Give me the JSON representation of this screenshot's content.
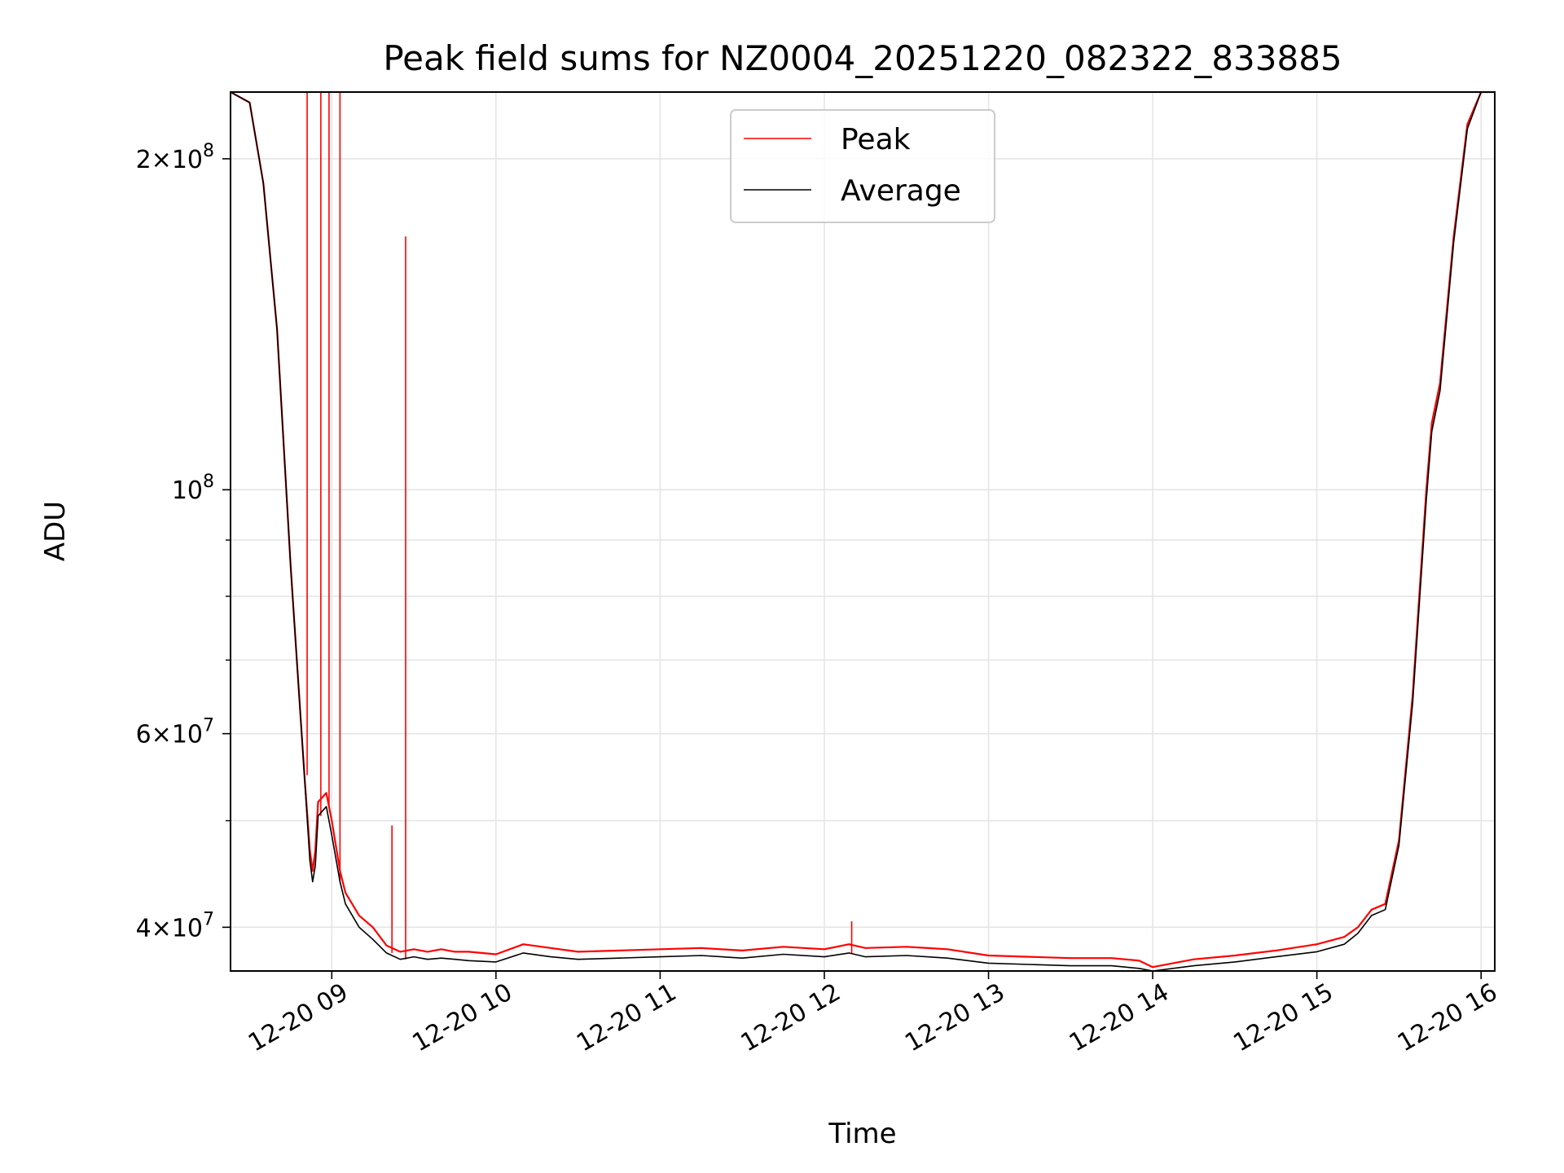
{
  "chart_data": {
    "type": "line",
    "title": "Peak field sums for NZ0004_20251220_082322_833885",
    "xlabel": "Time",
    "ylabel": "ADU",
    "yscale": "log",
    "grid": true,
    "legend_placement": "upper-center",
    "xlim": [
      "2025-12-20 08:23",
      "2025-12-20 16:05"
    ],
    "ylim": [
      36500000,
      230000000
    ],
    "x_ticks": [
      {
        "t": "2025-12-20 09:00",
        "label": "12-20 09"
      },
      {
        "t": "2025-12-20 10:00",
        "label": "12-20 10"
      },
      {
        "t": "2025-12-20 11:00",
        "label": "12-20 11"
      },
      {
        "t": "2025-12-20 12:00",
        "label": "12-20 12"
      },
      {
        "t": "2025-12-20 13:00",
        "label": "12-20 13"
      },
      {
        "t": "2025-12-20 14:00",
        "label": "12-20 14"
      },
      {
        "t": "2025-12-20 15:00",
        "label": "12-20 15"
      },
      {
        "t": "2025-12-20 16:00",
        "label": "12-20 16"
      }
    ],
    "y_major_ticks": [
      {
        "v": 40000000,
        "mant": "4",
        "exp": "7"
      },
      {
        "v": 60000000,
        "mant": "6",
        "exp": "7"
      },
      {
        "v": 100000000,
        "mant": "",
        "exp": "8"
      },
      {
        "v": 200000000,
        "mant": "2",
        "exp": "8"
      }
    ],
    "y_minor_ticks": [
      50000000,
      70000000,
      80000000,
      90000000
    ],
    "series": [
      {
        "name": "Peak",
        "color": "#ff0000",
        "x": [
          "2025-12-20 08:23",
          "2025-12-20 08:30",
          "2025-12-20 08:35",
          "2025-12-20 08:40",
          "2025-12-20 08:45",
          "2025-12-20 08:50",
          "2025-12-20 08:52",
          "2025-12-20 08:53",
          "2025-12-20 08:54",
          "2025-12-20 08:55",
          "2025-12-20 08:58",
          "2025-12-20 09:00",
          "2025-12-20 09:03",
          "2025-12-20 09:05",
          "2025-12-20 09:10",
          "2025-12-20 09:15",
          "2025-12-20 09:20",
          "2025-12-20 09:25",
          "2025-12-20 09:30",
          "2025-12-20 09:35",
          "2025-12-20 09:40",
          "2025-12-20 09:45",
          "2025-12-20 09:50",
          "2025-12-20 10:00",
          "2025-12-20 10:10",
          "2025-12-20 10:20",
          "2025-12-20 10:30",
          "2025-12-20 10:45",
          "2025-12-20 11:00",
          "2025-12-20 11:15",
          "2025-12-20 11:30",
          "2025-12-20 11:45",
          "2025-12-20 12:00",
          "2025-12-20 12:09",
          "2025-12-20 12:15",
          "2025-12-20 12:30",
          "2025-12-20 12:45",
          "2025-12-20 13:00",
          "2025-12-20 13:15",
          "2025-12-20 13:30",
          "2025-12-20 13:45",
          "2025-12-20 13:55",
          "2025-12-20 14:00",
          "2025-12-20 14:15",
          "2025-12-20 14:30",
          "2025-12-20 14:45",
          "2025-12-20 15:00",
          "2025-12-20 15:10",
          "2025-12-20 15:15",
          "2025-12-20 15:20",
          "2025-12-20 15:25",
          "2025-12-20 15:30",
          "2025-12-20 15:35",
          "2025-12-20 15:40",
          "2025-12-20 15:42",
          "2025-12-20 15:45",
          "2025-12-20 15:50",
          "2025-12-20 15:55",
          "2025-12-20 16:00",
          "2025-12-20 16:05"
        ],
        "y": [
          230000000,
          225000000,
          190000000,
          140000000,
          85000000,
          55000000,
          47000000,
          45000000,
          47000000,
          52000000,
          53000000,
          50000000,
          45000000,
          43000000,
          41000000,
          40000000,
          38500000,
          38000000,
          38200000,
          38000000,
          38200000,
          38000000,
          38000000,
          37800000,
          38600000,
          38300000,
          38000000,
          38100000,
          38200000,
          38300000,
          38100000,
          38400000,
          38200000,
          38600000,
          38300000,
          38400000,
          38200000,
          37700000,
          37600000,
          37500000,
          37500000,
          37300000,
          36800000,
          37400000,
          37700000,
          38100000,
          38600000,
          39200000,
          40000000,
          41500000,
          42000000,
          48000000,
          65000000,
          100000000,
          115000000,
          125000000,
          170000000,
          215000000,
          230000000,
          230000000
        ],
        "spikes": [
          {
            "x": "2025-12-20 08:51",
            "y": 230000000
          },
          {
            "x": "2025-12-20 08:56",
            "y": 230000000
          },
          {
            "x": "2025-12-20 08:59",
            "y": 230000000
          },
          {
            "x": "2025-12-20 09:03",
            "y": 230000000
          },
          {
            "x": "2025-12-20 09:22",
            "y": 49500000
          },
          {
            "x": "2025-12-20 09:27",
            "y": 170000000
          },
          {
            "x": "2025-12-20 12:10",
            "y": 40500000
          }
        ]
      },
      {
        "name": "Average",
        "color": "#000000",
        "x": [
          "2025-12-20 08:23",
          "2025-12-20 08:30",
          "2025-12-20 08:35",
          "2025-12-20 08:40",
          "2025-12-20 08:45",
          "2025-12-20 08:50",
          "2025-12-20 08:52",
          "2025-12-20 08:53",
          "2025-12-20 08:54",
          "2025-12-20 08:55",
          "2025-12-20 08:58",
          "2025-12-20 09:00",
          "2025-12-20 09:03",
          "2025-12-20 09:05",
          "2025-12-20 09:10",
          "2025-12-20 09:15",
          "2025-12-20 09:20",
          "2025-12-20 09:25",
          "2025-12-20 09:30",
          "2025-12-20 09:35",
          "2025-12-20 09:40",
          "2025-12-20 09:45",
          "2025-12-20 09:50",
          "2025-12-20 10:00",
          "2025-12-20 10:10",
          "2025-12-20 10:20",
          "2025-12-20 10:30",
          "2025-12-20 10:45",
          "2025-12-20 11:00",
          "2025-12-20 11:15",
          "2025-12-20 11:30",
          "2025-12-20 11:45",
          "2025-12-20 12:00",
          "2025-12-20 12:09",
          "2025-12-20 12:15",
          "2025-12-20 12:30",
          "2025-12-20 12:45",
          "2025-12-20 13:00",
          "2025-12-20 13:15",
          "2025-12-20 13:30",
          "2025-12-20 13:45",
          "2025-12-20 13:55",
          "2025-12-20 14:00",
          "2025-12-20 14:15",
          "2025-12-20 14:30",
          "2025-12-20 14:45",
          "2025-12-20 15:00",
          "2025-12-20 15:10",
          "2025-12-20 15:15",
          "2025-12-20 15:20",
          "2025-12-20 15:25",
          "2025-12-20 15:30",
          "2025-12-20 15:35",
          "2025-12-20 15:40",
          "2025-12-20 15:42",
          "2025-12-20 15:45",
          "2025-12-20 15:50",
          "2025-12-20 15:55",
          "2025-12-20 16:00",
          "2025-12-20 16:05"
        ],
        "y": [
          230000000,
          225000000,
          190000000,
          140000000,
          85000000,
          55000000,
          46000000,
          44000000,
          45500000,
          50500000,
          51500000,
          48500000,
          44000000,
          42000000,
          40000000,
          39000000,
          37900000,
          37400000,
          37600000,
          37400000,
          37500000,
          37400000,
          37300000,
          37200000,
          37900000,
          37600000,
          37400000,
          37500000,
          37600000,
          37700000,
          37500000,
          37800000,
          37600000,
          37900000,
          37600000,
          37700000,
          37500000,
          37100000,
          37000000,
          36900000,
          36900000,
          36700000,
          36500000,
          36900000,
          37200000,
          37600000,
          38000000,
          38600000,
          39500000,
          41000000,
          41500000,
          47500000,
          64000000,
          98000000,
          113000000,
          123000000,
          168000000,
          213000000,
          230000000,
          230000000
        ]
      }
    ]
  }
}
